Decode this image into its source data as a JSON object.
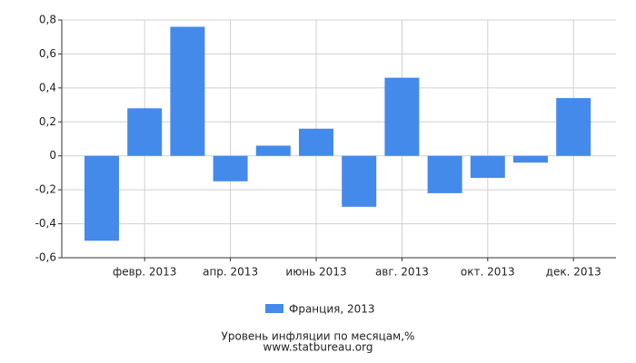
{
  "chart_data": {
    "type": "bar",
    "categories": [
      null,
      "февр. 2013",
      null,
      "апр. 2013",
      null,
      "июнь 2013",
      null,
      "авг. 2013",
      null,
      "окт. 2013",
      null,
      "дек. 2013"
    ],
    "series": [
      {
        "name": "Франция, 2013",
        "color": "#448aeb",
        "values": [
          -0.5,
          0.28,
          0.76,
          -0.15,
          0.06,
          0.16,
          -0.3,
          0.46,
          -0.22,
          -0.13,
          -0.04,
          0.34
        ]
      }
    ],
    "ylim": [
      -0.6,
      0.8
    ],
    "yticks": [
      {
        "value": -0.6,
        "label": "-0,6"
      },
      {
        "value": -0.4,
        "label": "-0,4"
      },
      {
        "value": -0.2,
        "label": "-0,2"
      },
      0,
      {
        "value": 0.2,
        "label": "0,2"
      },
      {
        "value": 0.4,
        "label": "0,4"
      },
      {
        "value": 0.6,
        "label": "0,6"
      },
      {
        "value": 0.8,
        "label": "0,8"
      }
    ],
    "grid": true,
    "caption": "Уровень инфляции по месяцам,%",
    "source": "www.statbureau.org"
  }
}
